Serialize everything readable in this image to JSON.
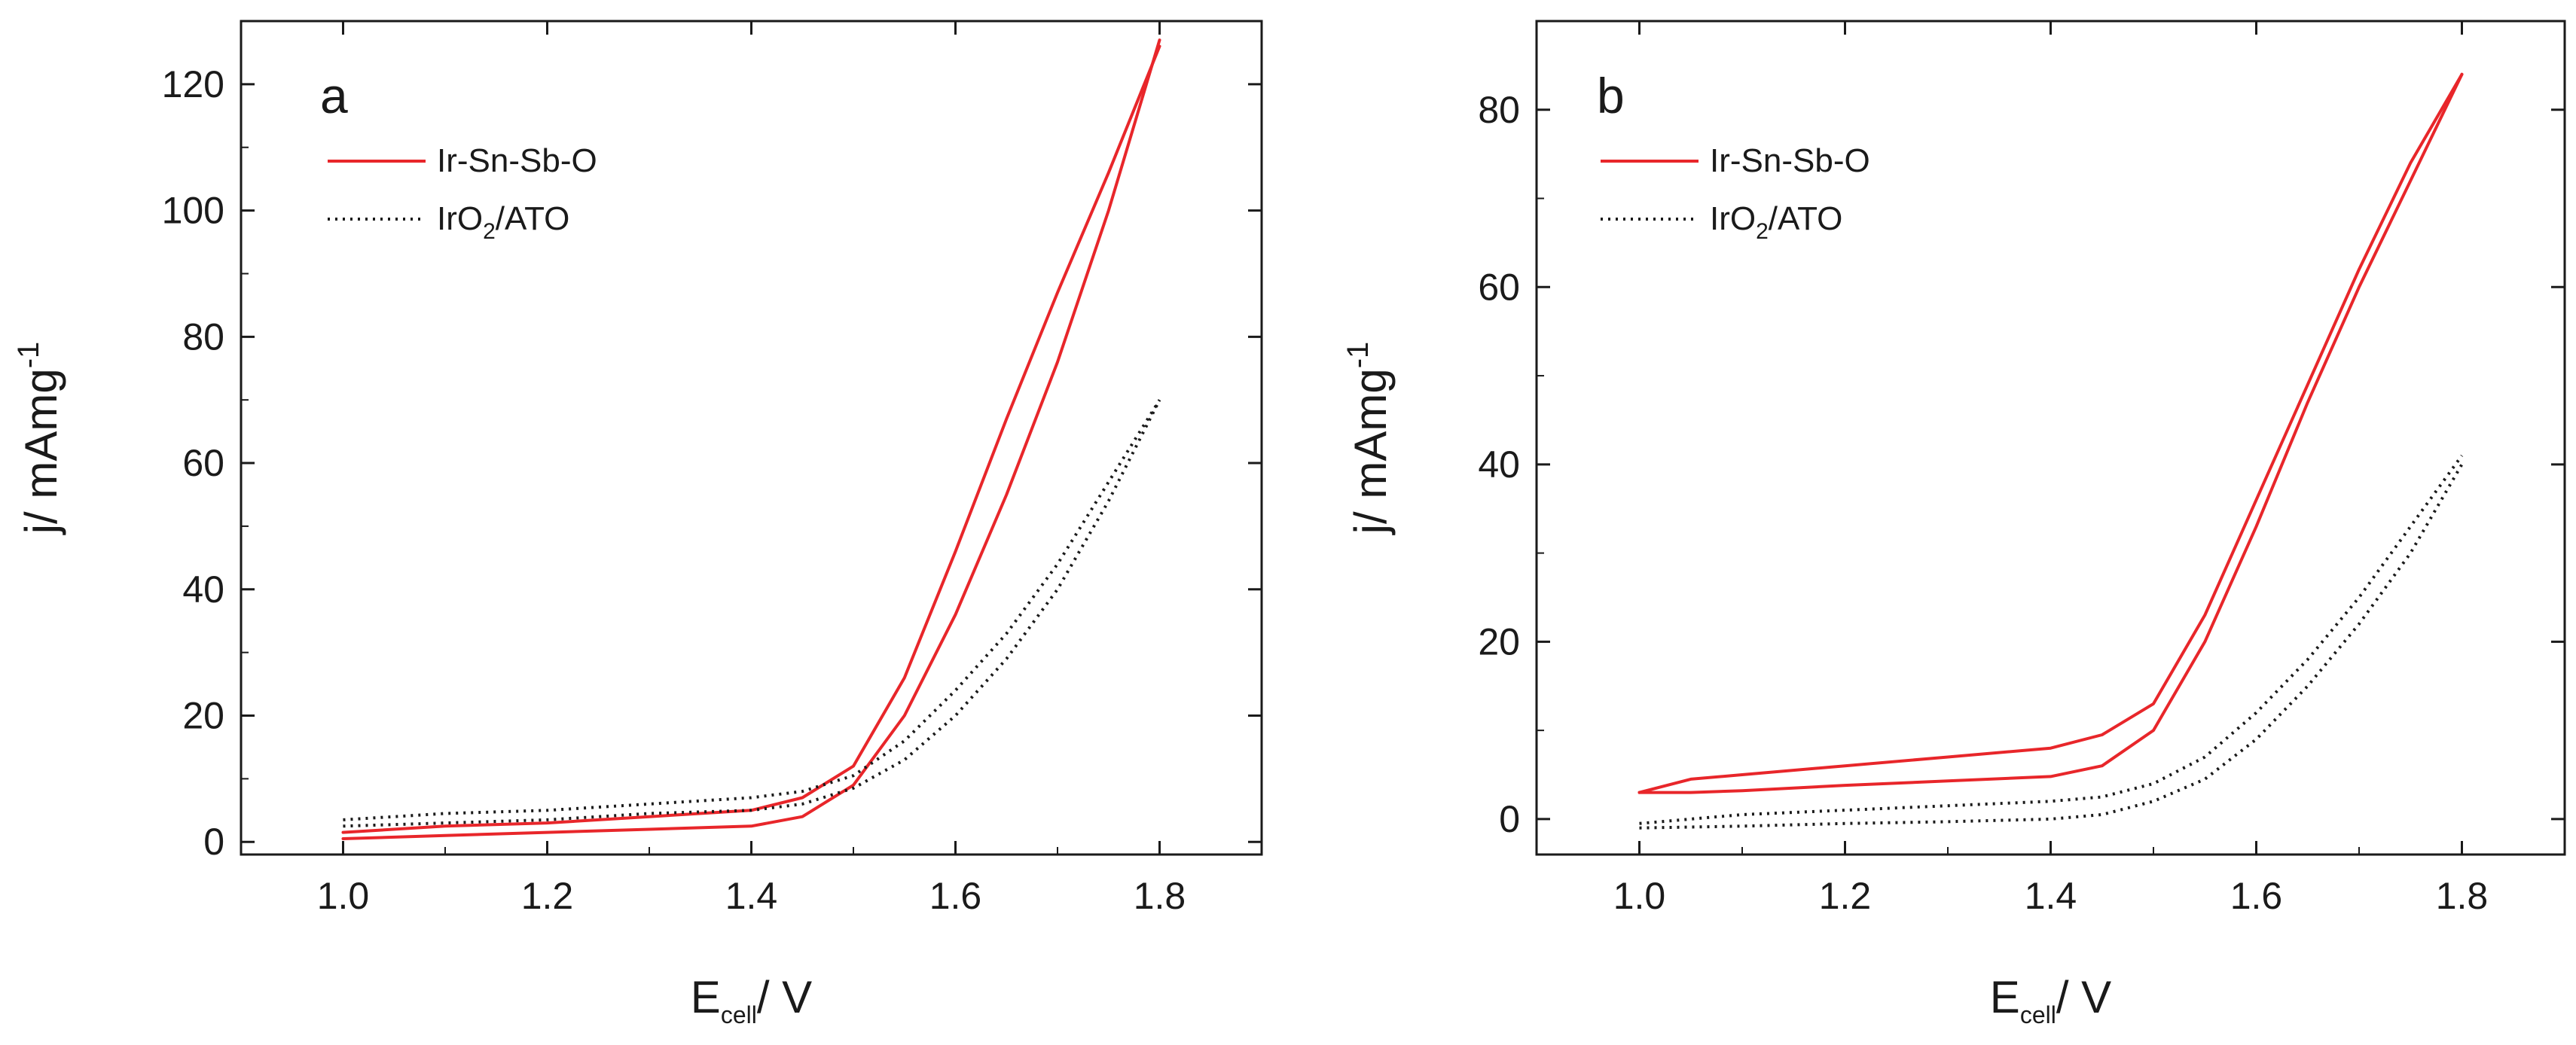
{
  "chart_data": [
    {
      "type": "line",
      "panel": "a",
      "xlabel": {
        "main": "E",
        "sub": "cell",
        "rest": "/ V"
      },
      "ylabel": {
        "main": "j/ mAmg",
        "sup": "-1"
      },
      "xlim": [
        0.9,
        1.9
      ],
      "ylim": [
        -2,
        130
      ],
      "xticks": [
        1.0,
        1.2,
        1.4,
        1.6,
        1.8
      ],
      "xtick_labels": [
        "1.0",
        "1.2",
        "1.4",
        "1.6",
        "1.8"
      ],
      "yticks": [
        0,
        20,
        40,
        60,
        80,
        100,
        120
      ],
      "ytick_labels": [
        "0",
        "20",
        "40",
        "60",
        "80",
        "100",
        "120"
      ],
      "legend": [
        {
          "label": "Ir-Sn-Sb-O",
          "color": "#e8262a",
          "style": "solid"
        },
        {
          "label": {
            "main": "IrO",
            "sub": "2",
            "rest": "/ATO"
          },
          "color": "#1a1a1a",
          "style": "dotted"
        }
      ],
      "series": [
        {
          "name": "Ir-Sn-Sb-O",
          "color": "#e8262a",
          "style": "solid",
          "curves": [
            {
              "x": [
                1.0,
                1.1,
                1.2,
                1.3,
                1.4,
                1.45,
                1.5,
                1.55,
                1.6,
                1.65,
                1.7,
                1.75,
                1.8
              ],
              "y": [
                0.5,
                1.0,
                1.5,
                2.0,
                2.5,
                4.0,
                9.0,
                20.0,
                36.0,
                55.0,
                76.0,
                100.0,
                127.0
              ]
            },
            {
              "x": [
                1.0,
                1.1,
                1.2,
                1.3,
                1.4,
                1.45,
                1.5,
                1.55,
                1.6,
                1.65,
                1.7,
                1.75,
                1.8
              ],
              "y": [
                1.5,
                2.5,
                3.0,
                4.0,
                5.0,
                7.0,
                12.0,
                26.0,
                46.0,
                67.0,
                87.0,
                106.0,
                126.0
              ]
            }
          ]
        },
        {
          "name": "IrO2/ATO",
          "color": "#1a1a1a",
          "style": "dotted",
          "curves": [
            {
              "x": [
                1.0,
                1.1,
                1.2,
                1.3,
                1.4,
                1.45,
                1.5,
                1.55,
                1.6,
                1.65,
                1.7,
                1.75,
                1.8
              ],
              "y": [
                2.5,
                3.0,
                3.5,
                4.5,
                5.0,
                6.0,
                8.5,
                13.0,
                20.0,
                29.0,
                40.0,
                54.0,
                70.0
              ]
            },
            {
              "x": [
                1.0,
                1.1,
                1.2,
                1.3,
                1.4,
                1.45,
                1.5,
                1.55,
                1.6,
                1.65,
                1.7,
                1.75,
                1.8
              ],
              "y": [
                3.5,
                4.5,
                5.0,
                6.0,
                7.0,
                8.0,
                10.5,
                16.0,
                24.0,
                33.0,
                44.0,
                57.0,
                70.0
              ]
            }
          ]
        }
      ]
    },
    {
      "type": "line",
      "panel": "b",
      "xlabel": {
        "main": "E",
        "sub": "cell",
        "rest": "/ V"
      },
      "ylabel": {
        "main": "j/ mAmg",
        "sup": "-1"
      },
      "xlim": [
        0.9,
        1.9
      ],
      "ylim": [
        -4,
        90
      ],
      "xticks": [
        1.0,
        1.2,
        1.4,
        1.6,
        1.8
      ],
      "xtick_labels": [
        "1.0",
        "1.2",
        "1.4",
        "1.6",
        "1.8"
      ],
      "yticks": [
        0,
        20,
        40,
        60,
        80
      ],
      "ytick_labels": [
        "0",
        "20",
        "40",
        "60",
        "80"
      ],
      "legend": [
        {
          "label": "Ir-Sn-Sb-O",
          "color": "#e8262a",
          "style": "solid"
        },
        {
          "label": {
            "main": "IrO",
            "sub": "2",
            "rest": "/ATO"
          },
          "color": "#1a1a1a",
          "style": "dotted"
        }
      ],
      "series": [
        {
          "name": "Ir-Sn-Sb-O",
          "color": "#e8262a",
          "style": "solid",
          "curves": [
            {
              "x": [
                1.0,
                1.05,
                1.1,
                1.2,
                1.3,
                1.4,
                1.45,
                1.5,
                1.55,
                1.6,
                1.65,
                1.7,
                1.75,
                1.8
              ],
              "y": [
                3.0,
                4.5,
                5.0,
                6.0,
                7.0,
                8.0,
                9.5,
                13.0,
                23.0,
                36.0,
                49.0,
                62.0,
                74.0,
                84.0
              ]
            },
            {
              "x": [
                1.0,
                1.05,
                1.1,
                1.2,
                1.3,
                1.4,
                1.45,
                1.5,
                1.55,
                1.6,
                1.65,
                1.7,
                1.75,
                1.8
              ],
              "y": [
                3.0,
                3.0,
                3.2,
                3.8,
                4.3,
                4.8,
                6.0,
                10.0,
                20.0,
                33.0,
                47.0,
                60.0,
                72.0,
                84.0
              ]
            }
          ]
        },
        {
          "name": "IrO2/ATO",
          "color": "#1a1a1a",
          "style": "dotted",
          "curves": [
            {
              "x": [
                1.0,
                1.1,
                1.2,
                1.3,
                1.4,
                1.45,
                1.5,
                1.55,
                1.6,
                1.65,
                1.7,
                1.75,
                1.8
              ],
              "y": [
                -1.0,
                -0.8,
                -0.5,
                -0.3,
                0.0,
                0.5,
                2.0,
                4.5,
                9.0,
                15.0,
                22.0,
                30.0,
                40.0
              ]
            },
            {
              "x": [
                1.0,
                1.1,
                1.2,
                1.3,
                1.4,
                1.45,
                1.5,
                1.55,
                1.6,
                1.65,
                1.7,
                1.75,
                1.8
              ],
              "y": [
                -0.5,
                0.5,
                1.0,
                1.5,
                2.0,
                2.5,
                4.0,
                7.0,
                12.0,
                18.0,
                25.0,
                33.0,
                41.0
              ]
            }
          ]
        }
      ]
    }
  ]
}
